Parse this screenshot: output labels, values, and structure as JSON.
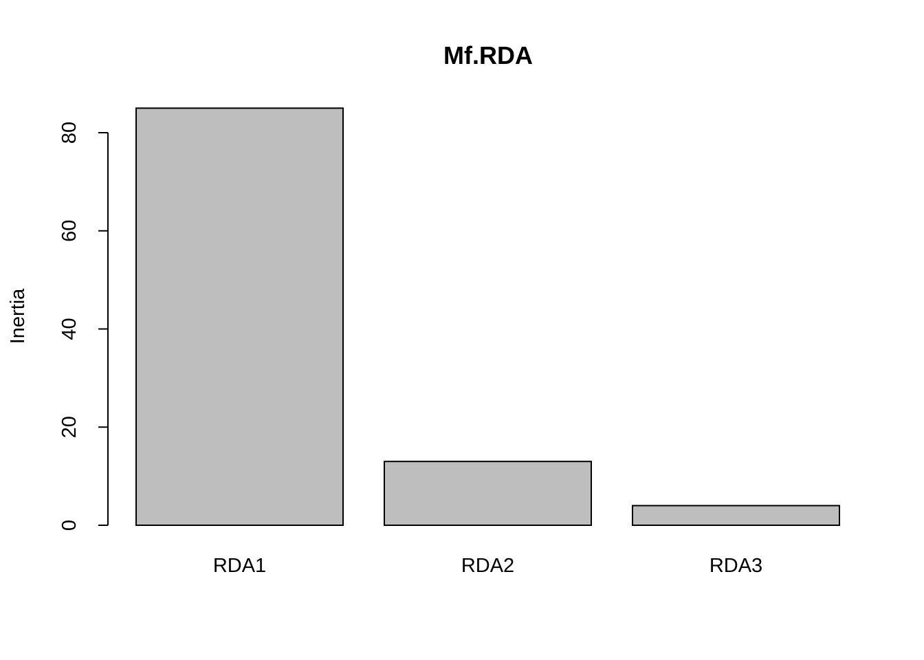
{
  "chart_data": {
    "type": "bar",
    "title": "Mf.RDA",
    "xlabel": "",
    "ylabel": "Inertia",
    "categories": [
      "RDA1",
      "RDA2",
      "RDA3"
    ],
    "values": [
      85.0,
      13.0,
      4.0
    ],
    "ylim": [
      0,
      80
    ],
    "yticks": [
      0,
      20,
      40,
      60,
      80
    ],
    "bar_color": "#bebebe",
    "border_color": "#000000",
    "grid": false,
    "legend": "none"
  }
}
